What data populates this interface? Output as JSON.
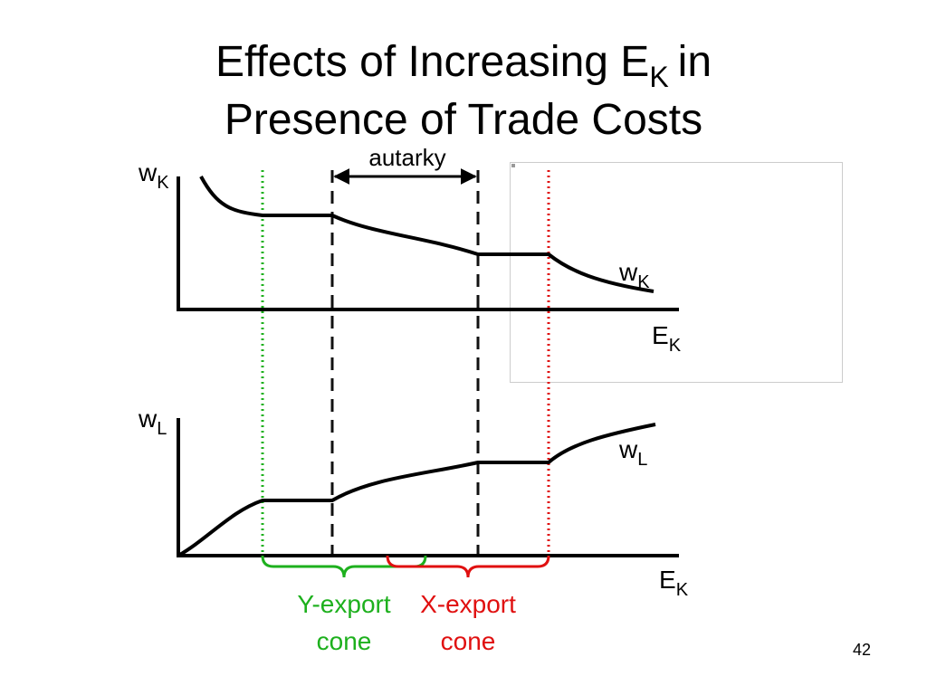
{
  "title": {
    "line1": "Effects of Increasing E",
    "line1_subscript": "K",
    "line1_end": "in",
    "line2": "Presence of Trade Costs"
  },
  "top_panel": {
    "y_axis_label": {
      "symbol": "w",
      "subscript": "K"
    },
    "curve_label": {
      "symbol": "w",
      "subscript": "K"
    },
    "x_axis_label": {
      "symbol": "E",
      "subscript": "K"
    }
  },
  "bottom_panel": {
    "y_axis_label": {
      "symbol": "w",
      "subscript": "L"
    },
    "curve_label": {
      "symbol": "w",
      "subscript": "L"
    },
    "x_axis_label": {
      "symbol": "E",
      "subscript": "K"
    }
  },
  "annotations": {
    "autarky": "autarky",
    "y_export_cone": [
      "Y-export",
      "cone"
    ],
    "x_export_cone": [
      "X-export",
      "cone"
    ]
  },
  "page_number": "42"
}
